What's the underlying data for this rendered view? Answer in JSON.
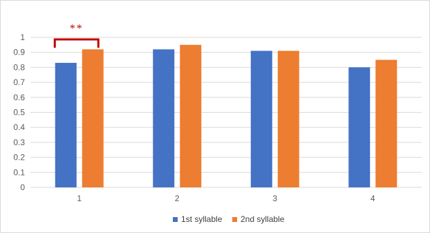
{
  "chart_data": {
    "type": "bar",
    "title": "",
    "xlabel": "",
    "ylabel": "",
    "categories": [
      "1",
      "2",
      "3",
      "4"
    ],
    "series": [
      {
        "name": "1st syllable",
        "color": "#4472c4",
        "values": [
          0.83,
          0.92,
          0.91,
          0.8
        ]
      },
      {
        "name": "2nd syllable",
        "color": "#ed7d31",
        "values": [
          0.92,
          0.95,
          0.91,
          0.85
        ]
      }
    ],
    "ylim": [
      0,
      1
    ],
    "yticks": [
      "0",
      "0.1",
      "0.2",
      "0.3",
      "0.4",
      "0.5",
      "0.6",
      "0.7",
      "0.8",
      "0.9",
      "1"
    ],
    "grid": true,
    "legend": "bottom",
    "annotation": {
      "text": "**",
      "category": "1",
      "color": "#c00000"
    }
  }
}
